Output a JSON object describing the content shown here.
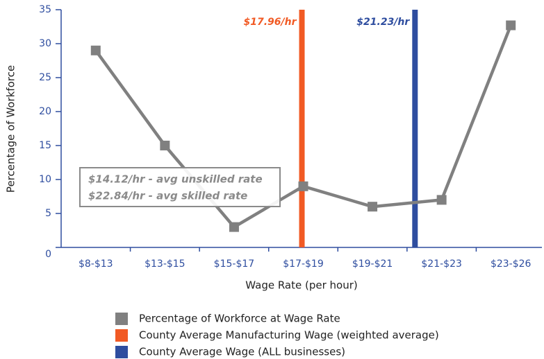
{
  "chart_data": {
    "type": "line",
    "categories": [
      "$8-$13",
      "$13-$15",
      "$15-$17",
      "$17-$19",
      "$19-$21",
      "$21-$23",
      "$23-$26"
    ],
    "series": [
      {
        "name": "Percentage of Workforce at Wage Rate",
        "color": "#808080",
        "values": [
          29,
          15,
          3,
          9,
          6,
          7,
          32.7
        ]
      }
    ],
    "reference_lines": [
      {
        "name": "County Average Manufacturing Wage (weighted average)",
        "value": 17.96,
        "label": "$17.96/hr",
        "color": "#f15a24"
      },
      {
        "name": "County Average Wage (ALL businesses)",
        "value": 21.23,
        "label": "$21.23/hr",
        "color": "#2e4d9f"
      }
    ],
    "annotations": [
      "$14.12/hr - avg unskilled rate",
      "$22.84/hr - avg skilled rate"
    ],
    "x_label": "Wage Rate (per hour)",
    "y_label": "Percentage of Workforce",
    "ylim": [
      0,
      35
    ],
    "yticks": [
      0,
      5,
      10,
      15,
      20,
      25,
      30,
      35
    ]
  }
}
